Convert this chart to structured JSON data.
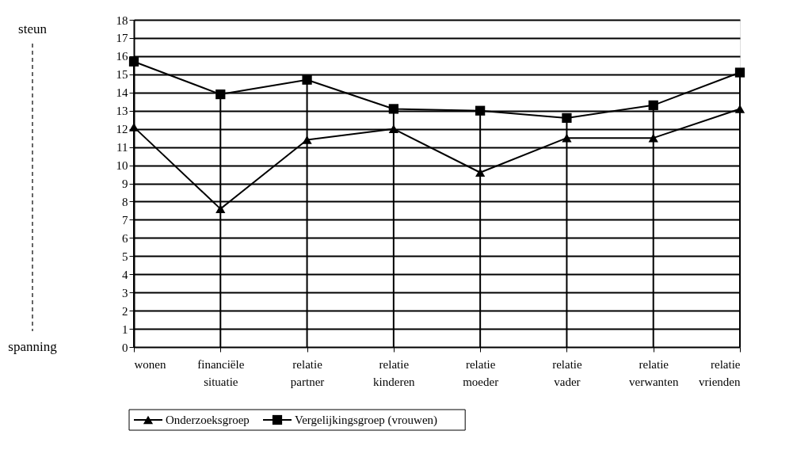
{
  "chart_data": {
    "type": "line",
    "categories": [
      "wonen",
      "financiële situatie",
      "relatie partner",
      "relatie kinderen",
      "relatie moeder",
      "relatie vader",
      "relatie verwanten",
      "relatie vrienden"
    ],
    "series": [
      {
        "name": "Onderzoeksgroep",
        "color": "#000000",
        "marker": "triangle",
        "values": [
          12.1,
          7.6,
          11.4,
          12.0,
          9.6,
          11.5,
          11.5,
          13.1
        ]
      },
      {
        "name": "Vergelijkingsgroep (vrouwen)",
        "color": "#000000",
        "marker": "square",
        "values": [
          15.7,
          13.9,
          14.7,
          13.1,
          13.0,
          12.6,
          13.3,
          15.1
        ]
      }
    ],
    "ylim": [
      0,
      18
    ],
    "yticks": [
      0,
      1,
      2,
      3,
      4,
      5,
      6,
      7,
      8,
      9,
      10,
      11,
      12,
      13,
      14,
      15,
      16,
      17,
      18
    ],
    "grid": true,
    "legend": "bottom",
    "line_style": "solid",
    "annotations": [
      "steun",
      "spanning"
    ]
  }
}
